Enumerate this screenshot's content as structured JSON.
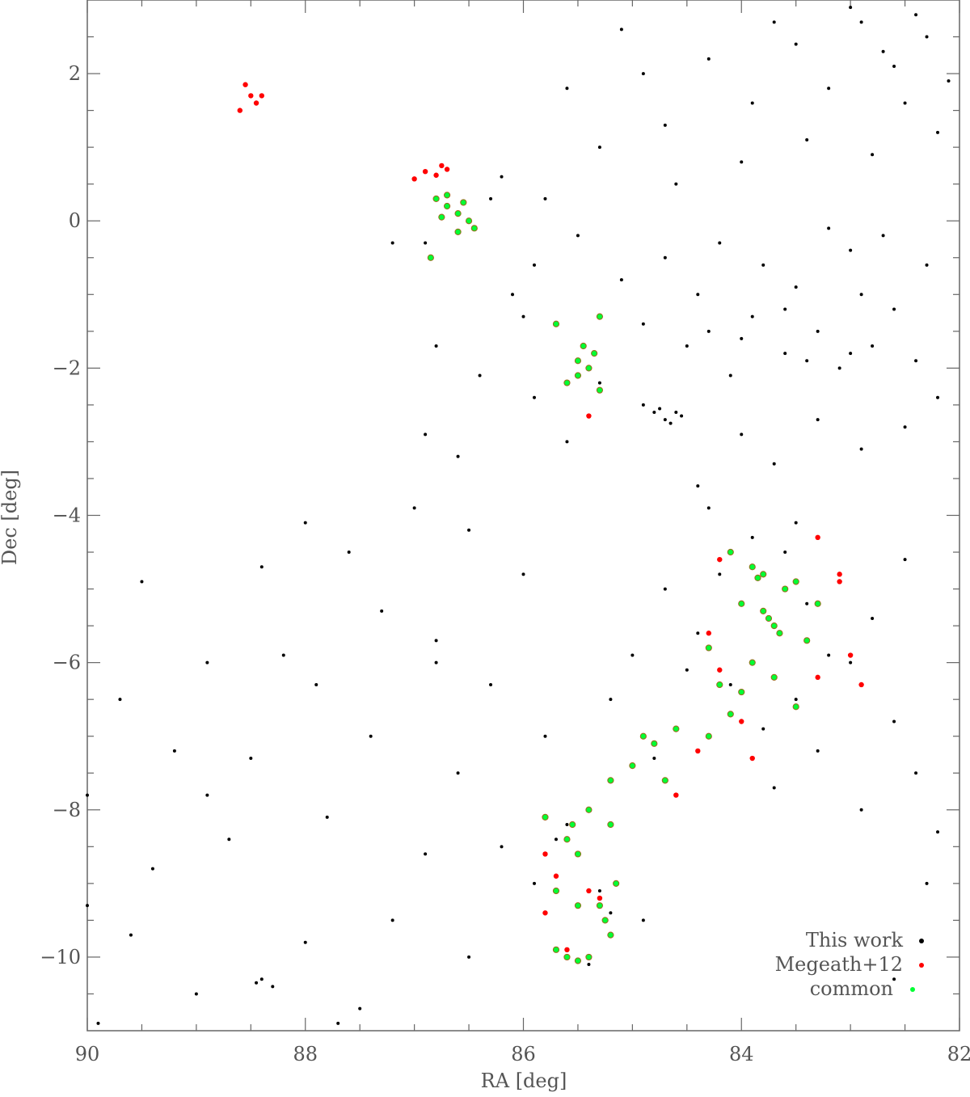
{
  "chart_data": {
    "type": "scatter",
    "xlabel": "RA [deg]",
    "ylabel": "Dec [deg]",
    "xlim": [
      90,
      82
    ],
    "ylim": [
      -11,
      3
    ],
    "xticks": [
      90,
      88,
      86,
      84,
      82
    ],
    "yticks": [
      {
        "value": -10,
        "label": "−10"
      },
      {
        "value": -8,
        "label": "−8"
      },
      {
        "value": -6,
        "label": "−6"
      },
      {
        "value": -4,
        "label": "−4"
      },
      {
        "value": -2,
        "label": "−2"
      },
      0,
      2
    ],
    "xminorticks": [
      89.5,
      89,
      88.5,
      87.5,
      87,
      86.5,
      85.5,
      85,
      84.5,
      83.5,
      83,
      82.5
    ],
    "yminorticks": [
      -10.5,
      -9.5,
      -9,
      -8.5,
      -7.5,
      -7,
      -6.5,
      -5.5,
      -5,
      -4.5,
      -3.5,
      -3,
      -2.5,
      -1.5,
      -1,
      -0.5,
      0.5,
      1,
      1.5,
      2.5
    ],
    "legend": "lower right",
    "series": [
      {
        "name": "This work",
        "color": "#000000",
        "x": [
          82.3,
          82.6,
          82.9,
          83.2,
          83.5,
          83.9,
          84.3,
          84.7,
          85.1,
          82.2,
          82.5,
          82.8,
          83.4,
          84.0,
          84.6,
          85.3,
          85.8,
          86.2,
          85.6,
          84.9,
          82.4,
          83.0,
          83.7,
          82.1,
          82.7,
          82.3,
          82.6,
          82.8,
          83.0,
          83.1,
          83.3,
          83.5,
          83.6,
          83.8,
          83.9,
          84.1,
          84.2,
          84.4,
          84.5,
          84.7,
          84.9,
          85.1,
          85.3,
          85.5,
          82.2,
          82.5,
          82.9,
          83.3,
          83.7,
          84.0,
          84.4,
          82.4,
          82.9,
          83.2,
          84.3,
          83.0,
          83.4,
          83.6,
          84.0,
          82.7,
          84.6,
          84.7,
          84.8,
          84.65,
          84.75,
          84.9,
          84.55,
          83.6,
          83.9,
          84.2,
          83.4,
          84.4,
          83.2,
          84.1,
          83.5,
          83.8,
          84.5,
          83.0,
          82.8,
          82.6,
          84.7,
          85.0,
          83.3,
          82.4,
          82.2,
          82.9,
          83.7,
          84.8,
          85.2,
          82.5,
          82.3,
          82.6,
          83.5,
          84.3,
          86.0,
          86.5,
          87.0,
          87.6,
          88.0,
          88.4,
          87.3,
          86.8,
          88.2,
          87.9,
          86.3,
          85.8,
          86.6,
          87.4,
          88.5,
          88.9,
          89.2,
          89.7,
          90.0,
          89.4,
          88.7,
          87.8,
          86.9,
          86.2,
          85.9,
          87.2,
          88.0,
          88.4,
          88.3,
          88.45,
          89.0,
          89.6,
          87.5,
          86.5,
          85.4,
          85.2,
          85.3,
          84.9,
          85.6,
          85.7,
          86.8,
          89.5,
          88.9,
          87.7,
          90.0,
          89.9,
          86.1,
          86.4,
          86.8,
          86.9,
          87.2,
          86.6,
          86.9,
          85.9,
          85.6,
          86.3,
          85.9,
          86.0
        ],
        "y": [
          2.5,
          2.1,
          2.7,
          1.8,
          2.4,
          1.6,
          2.2,
          1.3,
          2.6,
          1.2,
          1.6,
          0.9,
          1.1,
          0.8,
          0.5,
          1.0,
          0.3,
          0.6,
          1.8,
          2.0,
          2.8,
          2.9,
          2.7,
          1.9,
          2.3,
          -0.6,
          -1.2,
          -1.7,
          -0.4,
          -2.0,
          -1.5,
          -0.9,
          -1.8,
          -0.6,
          -1.3,
          -2.1,
          -0.3,
          -1.0,
          -1.7,
          -0.5,
          -1.4,
          -0.8,
          -2.2,
          -0.2,
          -2.4,
          -2.8,
          -3.1,
          -2.7,
          -3.3,
          -2.9,
          -3.6,
          -1.9,
          -1.0,
          -0.1,
          -1.5,
          -1.8,
          -1.9,
          -1.2,
          -1.6,
          -0.2,
          -2.6,
          -2.7,
          -2.6,
          -2.75,
          -2.55,
          -2.5,
          -2.65,
          -4.5,
          -4.3,
          -4.8,
          -5.2,
          -5.6,
          -5.9,
          -6.3,
          -6.5,
          -6.9,
          -6.1,
          -6.0,
          -5.4,
          -6.8,
          -5.0,
          -5.9,
          -7.2,
          -7.5,
          -8.3,
          -8.0,
          -7.7,
          -7.3,
          -6.5,
          -4.6,
          -9.0,
          -10.3,
          -4.1,
          -3.9,
          -4.8,
          -4.2,
          -3.9,
          -4.5,
          -4.1,
          -4.7,
          -5.3,
          -5.7,
          -5.9,
          -6.3,
          -6.3,
          -7.0,
          -7.5,
          -7.0,
          -7.3,
          -7.8,
          -7.2,
          -6.5,
          -7.8,
          -8.8,
          -8.4,
          -8.1,
          -8.6,
          -8.5,
          -9.0,
          -9.5,
          -9.8,
          -10.3,
          -10.4,
          -10.35,
          -10.5,
          -9.7,
          -10.7,
          -10.0,
          -10.1,
          -9.4,
          -9.1,
          -9.5,
          -8.2,
          -8.4,
          -6.0,
          -4.9,
          -6.0,
          -10.9,
          -9.3,
          -10.9,
          -1.0,
          -2.1,
          -1.7,
          -0.3,
          -0.3,
          -3.2,
          -2.9,
          -2.4,
          -3.0,
          0.3,
          -0.6,
          -1.3
        ]
      },
      {
        "name": "Megeath+12",
        "color": "#ff0000",
        "x": [
          88.6,
          88.55,
          88.5,
          88.45,
          88.4,
          87.0,
          86.9,
          86.8,
          86.75,
          86.7,
          85.4,
          83.3,
          84.2,
          83.1,
          84.3,
          83.0,
          82.9,
          83.3,
          84.0,
          83.9,
          84.4,
          84.6,
          85.8,
          85.7,
          85.4,
          85.8,
          85.6,
          85.3,
          84.2,
          83.1
        ],
        "y": [
          1.5,
          1.85,
          1.7,
          1.6,
          1.7,
          0.57,
          0.67,
          0.62,
          0.75,
          0.7,
          -2.65,
          -4.3,
          -4.6,
          -4.9,
          -5.6,
          -5.9,
          -6.3,
          -6.2,
          -6.8,
          -7.3,
          -7.2,
          -7.8,
          -8.6,
          -8.9,
          -9.1,
          -9.4,
          -9.9,
          -9.2,
          -6.1,
          -4.8
        ]
      },
      {
        "name": "common",
        "color": "#00ff33",
        "x": [
          86.8,
          86.7,
          86.6,
          86.5,
          86.75,
          86.55,
          86.7,
          86.45,
          86.6,
          86.85,
          85.5,
          85.4,
          85.35,
          85.45,
          85.5,
          85.6,
          85.3,
          85.7,
          85.3,
          83.8,
          83.85,
          83.9,
          83.75,
          83.7,
          83.8,
          83.65,
          83.6,
          84.0,
          84.1,
          83.5,
          83.4,
          83.9,
          84.0,
          84.1,
          84.2,
          83.7,
          83.5,
          83.3,
          84.3,
          84.3,
          84.6,
          84.8,
          84.9,
          85.0,
          84.7,
          85.2,
          85.4,
          85.55,
          85.6,
          85.2,
          85.5,
          85.7,
          85.5,
          85.3,
          85.25,
          85.15,
          85.2,
          85.6,
          85.5,
          85.7,
          85.4,
          85.8
        ],
        "y": [
          0.3,
          0.2,
          0.1,
          0.0,
          0.05,
          0.25,
          0.35,
          -0.1,
          -0.15,
          -0.5,
          -1.9,
          -2.0,
          -1.8,
          -1.7,
          -2.1,
          -2.2,
          -2.3,
          -1.4,
          -1.3,
          -4.8,
          -4.85,
          -4.7,
          -5.4,
          -5.5,
          -5.3,
          -5.6,
          -5.0,
          -5.2,
          -4.5,
          -4.9,
          -5.7,
          -6.0,
          -6.4,
          -6.7,
          -6.3,
          -6.2,
          -6.6,
          -5.2,
          -5.8,
          -7.0,
          -6.9,
          -7.1,
          -7.0,
          -7.4,
          -7.6,
          -7.6,
          -8.0,
          -8.2,
          -8.4,
          -8.2,
          -8.6,
          -9.1,
          -9.3,
          -9.3,
          -9.5,
          -9.0,
          -9.7,
          -10.0,
          -10.05,
          -9.9,
          -10.0,
          -8.1
        ]
      }
    ]
  }
}
